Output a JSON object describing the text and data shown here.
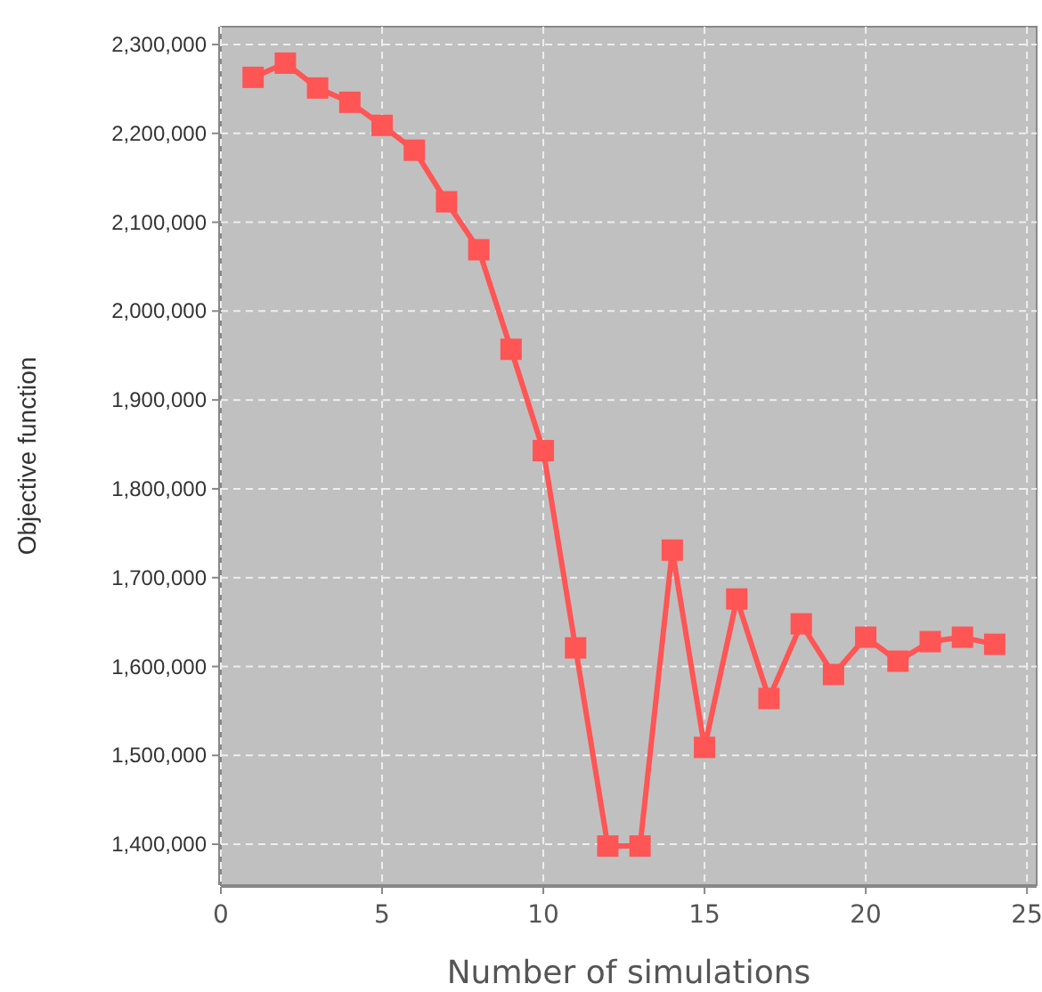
{
  "chart_data": {
    "type": "line",
    "xlabel": "Number of simulations",
    "ylabel": "Objective function",
    "x": [
      1,
      2,
      3,
      4,
      5,
      6,
      7,
      8,
      9,
      10,
      11,
      12,
      13,
      14,
      15,
      16,
      17,
      18,
      19,
      20,
      21,
      22,
      23,
      24
    ],
    "series": [
      {
        "color": "#ff5555",
        "values": [
          2263000,
          2279000,
          2251000,
          2235000,
          2209000,
          2181000,
          2123000,
          2069000,
          1957000,
          1843000,
          1621000,
          1398000,
          1398000,
          1731000,
          1509000,
          1676000,
          1564000,
          1648000,
          1591000,
          1633000,
          1606000,
          1628000,
          1633000,
          1625000
        ]
      }
    ],
    "xlim": [
      0,
      25.3
    ],
    "xticks": [
      0,
      5,
      10,
      15,
      20,
      25
    ],
    "ylim": [
      1354000,
      2320000
    ],
    "yticks": [
      {
        "value": 1400000,
        "label": "1,400,000"
      },
      {
        "value": 1500000,
        "label": "1,500,000"
      },
      {
        "value": 1600000,
        "label": "1,600,000"
      },
      {
        "value": 1700000,
        "label": "1,700,000"
      },
      {
        "value": 1800000,
        "label": "1,800,000"
      },
      {
        "value": 1900000,
        "label": "1,900,000"
      },
      {
        "value": 2000000,
        "label": "2,000,000"
      },
      {
        "value": 2100000,
        "label": "2,100,000"
      },
      {
        "value": 2200000,
        "label": "2,200,000"
      },
      {
        "value": 2300000,
        "label": "2,300,000"
      }
    ],
    "grid": true,
    "marker": "square",
    "line_style": "solid"
  }
}
